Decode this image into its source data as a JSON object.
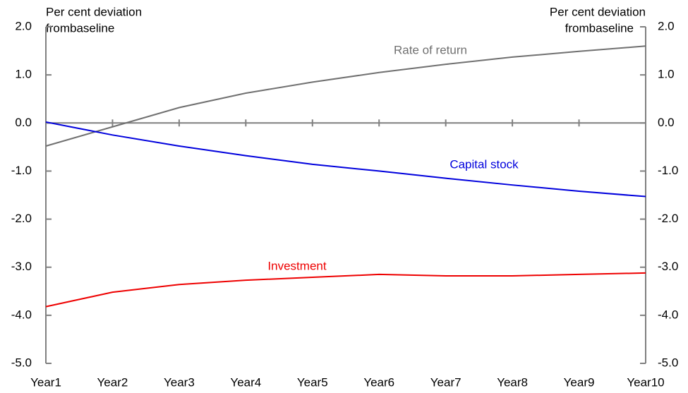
{
  "chart_data": {
    "type": "line",
    "y_label": [
      "Per cent deviation",
      "frombaseline"
    ],
    "y2_label": [
      "Per cent deviation",
      "frombaseline"
    ],
    "categories": [
      "Year1",
      "Year2",
      "Year3",
      "Year4",
      "Year5",
      "Year6",
      "Year7",
      "Year8",
      "Year9",
      "Year10"
    ],
    "series": [
      {
        "name": "Rate of return",
        "color": "#707070",
        "values": [
          -0.48,
          -0.08,
          0.32,
          0.62,
          0.85,
          1.05,
          1.22,
          1.37,
          1.49,
          1.6
        ]
      },
      {
        "name": "Capital stock",
        "color": "#0000dd",
        "values": [
          0.02,
          -0.25,
          -0.48,
          -0.68,
          -0.86,
          -1.0,
          -1.15,
          -1.29,
          -1.42,
          -1.53
        ]
      },
      {
        "name": "Investment",
        "color": "#ee0000",
        "values": [
          -3.82,
          -3.52,
          -3.36,
          -3.27,
          -3.21,
          -3.15,
          -3.18,
          -3.18,
          -3.15,
          -3.12
        ]
      }
    ],
    "ylim": [
      -5,
      2
    ],
    "yticks": [
      {
        "value": -5,
        "label": "-5.0"
      },
      {
        "value": -4,
        "label": "-4.0"
      },
      {
        "value": -3,
        "label": "-3.0"
      },
      {
        "value": -2,
        "label": "-2.0"
      },
      {
        "value": -1,
        "label": "-1.0"
      },
      {
        "value": 0,
        "label": "0.0"
      },
      {
        "value": 1,
        "label": "1.0"
      },
      {
        "value": 2,
        "label": "2.0"
      }
    ],
    "y2lim": [
      -5,
      2
    ],
    "y2ticks": [
      {
        "value": -5,
        "label": "-5.0"
      },
      {
        "value": -4,
        "label": "-4.0"
      },
      {
        "value": -3,
        "label": "-3.0"
      },
      {
        "value": -2,
        "label": "-2.0"
      },
      {
        "value": -1,
        "label": "-1.0"
      },
      {
        "value": 0,
        "label": "0.0"
      },
      {
        "value": 1,
        "label": "1.0"
      },
      {
        "value": 2,
        "label": "2.0"
      }
    ]
  }
}
